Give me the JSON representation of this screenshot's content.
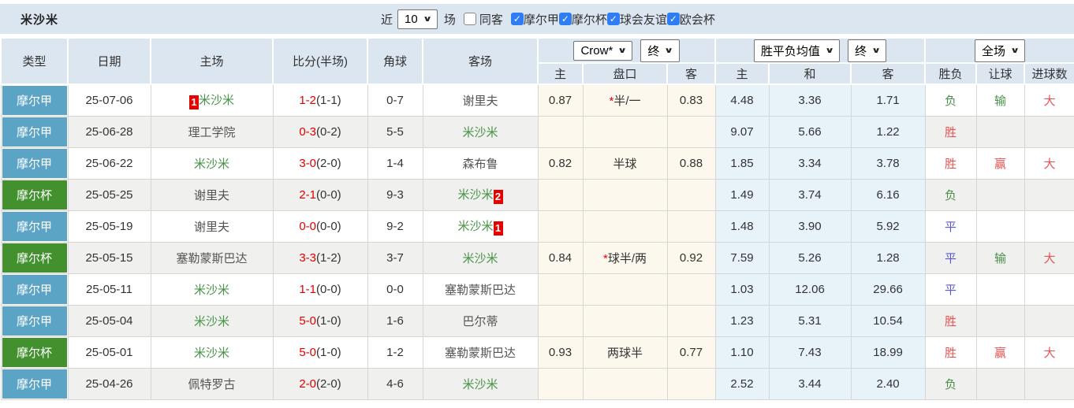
{
  "toolbar": {
    "team": "米沙米",
    "recent_label": "近",
    "recent_value": "10",
    "matches_label": "场",
    "same_away_label": "同客",
    "same_away_state": "",
    "competitions": [
      {
        "label": "摩尔甲",
        "state": "checked"
      },
      {
        "label": "摩尔杯",
        "state": "checked"
      },
      {
        "label": "球会友谊",
        "state": "checked"
      },
      {
        "label": "欧会杯",
        "state": "checked"
      }
    ]
  },
  "table": {
    "headers": {
      "type": "类型",
      "date": "日期",
      "home": "主场",
      "score": "比分(半场)",
      "corner": "角球",
      "away": "客场",
      "bookmaker_select": "Crow*",
      "bookmaker_time_select": "终",
      "avg_select": "胜平负均值",
      "avg_time_select": "终",
      "scope_select": "全场",
      "odds_home": "主",
      "odds_handicap": "盘口",
      "odds_away": "客",
      "avg_home": "主",
      "avg_draw": "和",
      "avg_away": "客",
      "result_wl": "胜负",
      "result_handicap": "让球",
      "result_goals": "进球数"
    },
    "rows": [
      {
        "league": "摩尔甲",
        "league_color": "blue",
        "date": "25-07-06",
        "home_badge_before": "1",
        "home": "米沙米",
        "home_style": "target",
        "score": "1-2",
        "half": "(1-1)",
        "corner": "0-7",
        "away": "谢里夫",
        "odds_home": "0.87",
        "handicap_star": "*",
        "handicap": "半/一",
        "odds_away": "0.83",
        "avg_home": "4.48",
        "avg_draw": "3.36",
        "avg_away": "1.71",
        "result_wl": "负",
        "result_wl_color": "green",
        "result_let": "输",
        "result_let_color": "green",
        "result_goals": "大",
        "result_goals_color": "red"
      },
      {
        "league": "摩尔甲",
        "league_color": "blue",
        "date": "25-06-28",
        "home": "理工学院",
        "score": "0-3",
        "half": "(0-2)",
        "corner": "5-5",
        "away": "米沙米",
        "away_style": "target",
        "avg_home": "9.07",
        "avg_draw": "5.66",
        "avg_away": "1.22",
        "result_wl": "胜",
        "result_wl_color": "red"
      },
      {
        "league": "摩尔甲",
        "league_color": "blue",
        "date": "25-06-22",
        "home": "米沙米",
        "home_style": "target",
        "score": "3-0",
        "half": "(2-0)",
        "corner": "1-4",
        "away": "森布鲁",
        "odds_home": "0.82",
        "handicap": "半球",
        "odds_away": "0.88",
        "avg_home": "1.85",
        "avg_draw": "3.34",
        "avg_away": "3.78",
        "result_wl": "胜",
        "result_wl_color": "red",
        "result_let": "赢",
        "result_let_color": "red",
        "result_goals": "大",
        "result_goals_color": "red"
      },
      {
        "league": "摩尔杯",
        "league_color": "green",
        "date": "25-05-25",
        "home": "谢里夫",
        "score": "2-1",
        "half": "(0-0)",
        "corner": "9-3",
        "away": "米沙米",
        "away_style": "target",
        "away_badge_after": "2",
        "avg_home": "1.49",
        "avg_draw": "3.74",
        "avg_away": "6.16",
        "result_wl": "负",
        "result_wl_color": "green"
      },
      {
        "league": "摩尔甲",
        "league_color": "blue",
        "date": "25-05-19",
        "home": "谢里夫",
        "score": "0-0",
        "half": "(0-0)",
        "corner": "9-2",
        "away": "米沙米",
        "away_style": "target",
        "away_badge_after": "1",
        "avg_home": "1.48",
        "avg_draw": "3.90",
        "avg_away": "5.92",
        "result_wl": "平",
        "result_wl_color": "blue"
      },
      {
        "league": "摩尔杯",
        "league_color": "green",
        "date": "25-05-15",
        "home": "塞勒蒙斯巴达",
        "score": "3-3",
        "half": "(1-2)",
        "corner": "3-7",
        "away": "米沙米",
        "away_style": "target",
        "odds_home": "0.84",
        "handicap_star": "*",
        "handicap": "球半/两",
        "odds_away": "0.92",
        "avg_home": "7.59",
        "avg_draw": "5.26",
        "avg_away": "1.28",
        "result_wl": "平",
        "result_wl_color": "blue",
        "result_let": "输",
        "result_let_color": "green",
        "result_goals": "大",
        "result_goals_color": "red"
      },
      {
        "league": "摩尔甲",
        "league_color": "blue",
        "date": "25-05-11",
        "home": "米沙米",
        "home_style": "target",
        "score": "1-1",
        "half": "(0-0)",
        "corner": "0-0",
        "away": "塞勒蒙斯巴达",
        "avg_home": "1.03",
        "avg_draw": "12.06",
        "avg_away": "29.66",
        "result_wl": "平",
        "result_wl_color": "blue"
      },
      {
        "league": "摩尔甲",
        "league_color": "blue",
        "date": "25-05-04",
        "home": "米沙米",
        "home_style": "target",
        "score": "5-0",
        "half": "(1-0)",
        "corner": "1-6",
        "away": "巴尔蒂",
        "avg_home": "1.23",
        "avg_draw": "5.31",
        "avg_away": "10.54",
        "result_wl": "胜",
        "result_wl_color": "red"
      },
      {
        "league": "摩尔杯",
        "league_color": "green",
        "date": "25-05-01",
        "home": "米沙米",
        "home_style": "target",
        "score": "5-0",
        "half": "(1-0)",
        "corner": "1-2",
        "away": "塞勒蒙斯巴达",
        "odds_home": "0.93",
        "handicap": "两球半",
        "odds_away": "0.77",
        "avg_home": "1.10",
        "avg_draw": "7.43",
        "avg_away": "18.99",
        "result_wl": "胜",
        "result_wl_color": "red",
        "result_let": "赢",
        "result_let_color": "red",
        "result_goals": "大",
        "result_goals_color": "red"
      },
      {
        "league": "摩尔甲",
        "league_color": "blue",
        "date": "25-04-26",
        "home": "佩特罗古",
        "score": "2-0",
        "half": "(2-0)",
        "corner": "4-6",
        "away": "米沙米",
        "away_style": "target",
        "avg_home": "2.52",
        "avg_draw": "3.44",
        "avg_away": "2.40",
        "result_wl": "负",
        "result_wl_color": "green"
      }
    ]
  },
  "colors": {
    "header_bg": "#dce6f1",
    "border": "#d6d6d6",
    "row_alt": "#f0f0ee",
    "cream": "#fdf8ed",
    "avg_bg": "#e8f2f9",
    "accent_blue": "#5ca4c5",
    "accent_green": "#42902e",
    "target_team": "#489348",
    "score_red": "#e60000",
    "result_red": "#e25555",
    "result_green": "#4a8f4a",
    "result_blue": "#5a57d8",
    "badge_red": "#e60000",
    "check_blue": "#2e7cf6"
  }
}
